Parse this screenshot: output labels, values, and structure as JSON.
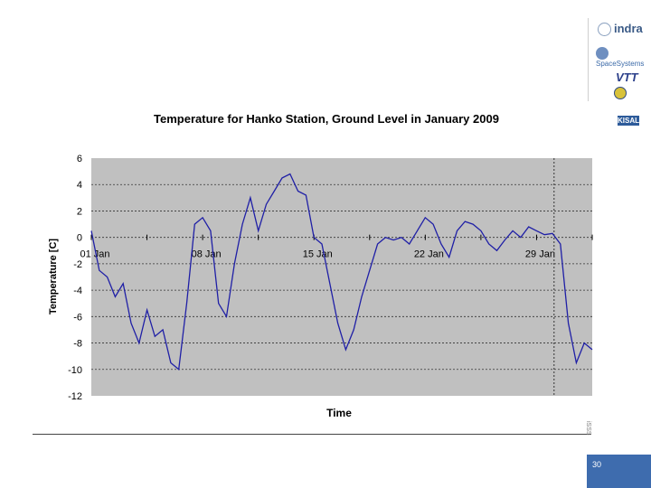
{
  "logos": {
    "indra": "indra",
    "space_systems": "SpaceSystems"
  },
  "chart_data": {
    "type": "line",
    "title": "Temperature for Hanko Station, Ground Level in January 2009",
    "xlabel": "Time",
    "ylabel": "Temperature [C]",
    "ylim": [
      -12,
      6
    ],
    "yticks": [
      6,
      4,
      2,
      0,
      -2,
      -4,
      -6,
      -8,
      -10,
      -12
    ],
    "xlim": [
      0,
      31.5
    ],
    "xtick_positions": [
      0,
      7,
      14,
      21,
      28
    ],
    "xtick_labels": [
      "01 Jan",
      "08 Jan",
      "15 Jan",
      "22 Jan",
      "29 Jan"
    ],
    "marker_day": 29.1,
    "grid": "horizontal-dashed",
    "plot_background": "#c0c0c0",
    "line_color": "#1f1fa6",
    "series": [
      {
        "x": [
          0.0,
          0.5,
          1.0,
          1.5,
          2.0,
          2.5,
          3.0,
          3.5,
          4.0,
          4.5,
          5.0,
          5.5,
          6.0,
          6.5,
          7.0,
          7.5,
          8.0,
          8.5,
          9.0,
          9.5,
          10.0,
          10.5,
          11.0,
          11.5,
          12.0,
          12.5,
          13.0,
          13.5,
          14.0,
          14.5,
          15.0,
          15.5,
          16.0,
          16.5,
          17.0,
          17.5,
          18.0,
          18.5,
          19.0,
          19.5,
          20.0,
          20.5,
          21.0,
          21.5,
          22.0,
          22.5,
          23.0,
          23.5,
          24.0,
          24.5,
          25.0,
          25.5,
          26.0,
          26.5,
          27.0,
          27.5,
          28.0,
          28.5,
          29.0,
          29.5,
          30.0,
          30.5,
          31.0,
          31.5
        ],
        "y": [
          0.5,
          -2.5,
          -3.0,
          -4.5,
          -3.5,
          -6.5,
          -8.0,
          -5.5,
          -7.5,
          -7.0,
          -9.5,
          -10.0,
          -5.0,
          1.0,
          1.5,
          0.5,
          -5.0,
          -6.0,
          -2.0,
          1.0,
          3.0,
          0.5,
          2.5,
          3.5,
          4.5,
          4.8,
          3.5,
          3.2,
          0.0,
          -0.5,
          -3.5,
          -6.5,
          -8.5,
          -7.0,
          -4.5,
          -2.5,
          -0.5,
          0.0,
          -0.2,
          0.0,
          -0.5,
          0.5,
          1.5,
          1.0,
          -0.5,
          -1.5,
          0.5,
          1.2,
          1.0,
          0.5,
          -0.5,
          -1.0,
          -0.2,
          0.5,
          0.0,
          0.8,
          0.5,
          0.2,
          0.3,
          -0.5,
          -6.5,
          -9.5,
          -8.0,
          -8.5
        ]
      }
    ]
  },
  "footer": {
    "edge_text": "iSSS",
    "page_number": "30"
  }
}
